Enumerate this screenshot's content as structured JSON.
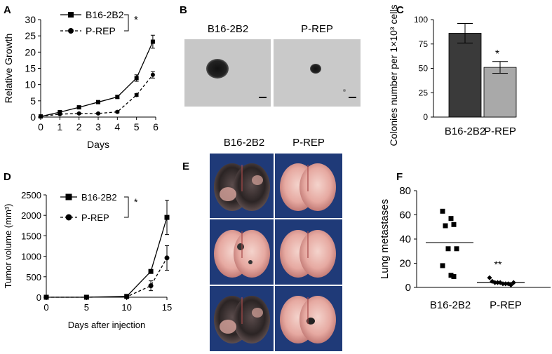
{
  "panels": {
    "A": "A",
    "B": "B",
    "C": "C",
    "D": "D",
    "E": "E",
    "F": "F"
  },
  "chart_data": [
    {
      "panel": "A",
      "type": "line",
      "xlabel": "Days",
      "ylabel": "Relative Growth",
      "xlim": [
        0,
        6
      ],
      "ylim": [
        0,
        30
      ],
      "xticks": [
        "0",
        "1",
        "2",
        "3",
        "4",
        "5",
        "6"
      ],
      "yticks": [
        "0",
        "5",
        "10",
        "15",
        "20",
        "25",
        "30"
      ],
      "legend": [
        "B16-2B2",
        "P-REP"
      ],
      "legend_position": "top-left",
      "significance": "*",
      "x": [
        0,
        1,
        2,
        3,
        4,
        5,
        5.85
      ],
      "series": [
        {
          "name": "B16-2B2",
          "values": [
            0.2,
            1.5,
            3.0,
            4.6,
            6.2,
            12.0,
            23.2
          ],
          "err": [
            0,
            0.3,
            0.4,
            0.4,
            0.5,
            1.0,
            2.0
          ],
          "marker": "square",
          "line": "solid"
        },
        {
          "name": "P-REP",
          "values": [
            0.2,
            0.9,
            1.1,
            1.1,
            1.6,
            6.8,
            13.0
          ],
          "err": [
            0,
            0.2,
            0.2,
            0.2,
            0.3,
            0.4,
            1.0
          ],
          "marker": "circle",
          "line": "dashed"
        }
      ]
    },
    {
      "panel": "C",
      "type": "bar",
      "ylabel": "Colonies number per 1×10³ cells",
      "ylim": [
        0,
        100
      ],
      "yticks": [
        "0",
        "25",
        "50",
        "75",
        "100"
      ],
      "categories": [
        "B16-2B2",
        "P-REP"
      ],
      "values": [
        86,
        51
      ],
      "err": [
        10,
        6
      ],
      "significance": "*",
      "colors": [
        "#3a3a3a",
        "#a9a9a9"
      ]
    },
    {
      "panel": "D",
      "type": "line",
      "xlabel": "Days after injection",
      "ylabel": "Tumor volume (mm³)",
      "xlim": [
        0,
        15
      ],
      "ylim": [
        0,
        2500
      ],
      "xticks": [
        "0",
        "5",
        "10",
        "15"
      ],
      "yticks": [
        "0",
        "500",
        "1000",
        "1500",
        "2000",
        "2500"
      ],
      "legend": [
        "B16-2B2",
        "P-REP"
      ],
      "legend_position": "top-left",
      "significance": "*",
      "x": [
        0,
        5,
        10,
        13,
        15
      ],
      "series": [
        {
          "name": "B16-2B2",
          "values": [
            0,
            0,
            20,
            630,
            1950
          ],
          "err": [
            0,
            20,
            20,
            30,
            420
          ],
          "marker": "square",
          "line": "solid"
        },
        {
          "name": "P-REP",
          "values": [
            0,
            0,
            10,
            280,
            960
          ],
          "err": [
            0,
            20,
            20,
            120,
            300
          ],
          "marker": "circle",
          "line": "dashed"
        }
      ]
    },
    {
      "panel": "F",
      "type": "scatter",
      "ylabel": "Lung metastases",
      "ylim": [
        0,
        80
      ],
      "yticks": [
        "0",
        "20",
        "40",
        "60",
        "80"
      ],
      "categories": [
        "B16-2B2",
        "P-REP"
      ],
      "significance": "**",
      "series": [
        {
          "name": "B16-2B2",
          "marker": "square",
          "values": [
            63,
            57,
            52,
            51,
            32,
            32,
            18,
            10,
            9
          ],
          "mean": 37
        },
        {
          "name": "P-REP",
          "marker": "diamond",
          "values": [
            8,
            5,
            4,
            4,
            4,
            3,
            3,
            3,
            2,
            4
          ],
          "mean": 4
        }
      ]
    }
  ],
  "images": {
    "B": {
      "labels": [
        "B16-2B2",
        "P-REP"
      ]
    },
    "E": {
      "labels": [
        "B16-2B2",
        "P-REP"
      ]
    }
  }
}
